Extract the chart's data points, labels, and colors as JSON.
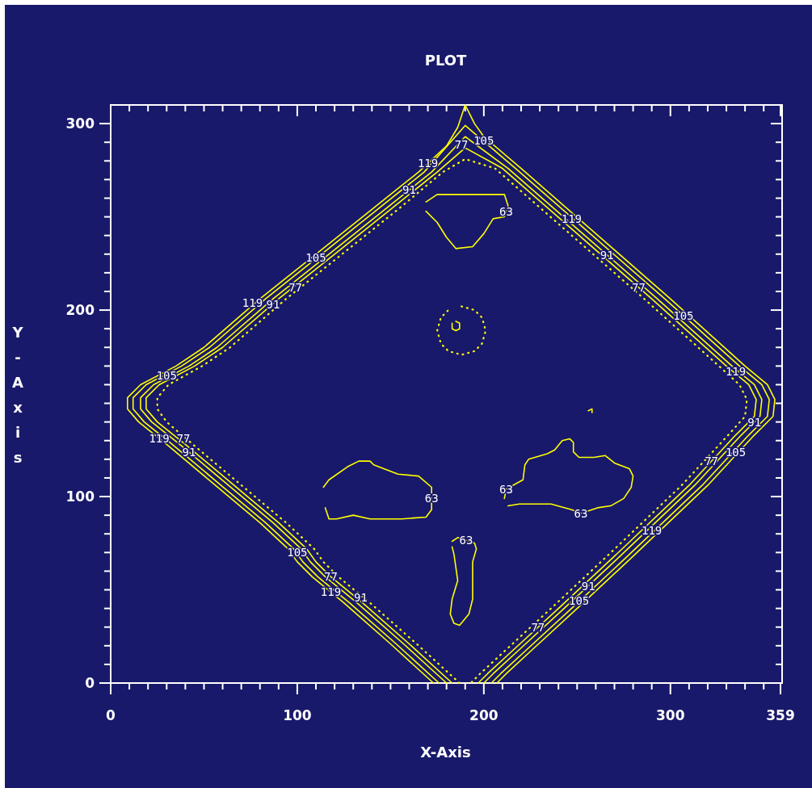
{
  "chart_data": {
    "type": "line",
    "title": "PLOT",
    "xlabel": "X-Axis",
    "ylabel": "Y-Axis",
    "xlim": [
      0,
      359
    ],
    "ylim": [
      0,
      310
    ],
    "xticks": [
      0,
      {
        "value": 10,
        "label": null
      },
      {
        "value": 20,
        "label": null
      },
      {
        "value": 30,
        "label": null
      },
      {
        "value": 40,
        "label": null
      },
      {
        "value": 50,
        "label": null
      },
      {
        "value": 60,
        "label": null
      },
      {
        "value": 70,
        "label": null
      },
      {
        "value": 80,
        "label": null
      },
      {
        "value": 90,
        "label": null
      },
      100,
      {
        "value": 110,
        "label": null
      },
      {
        "value": 120,
        "label": null
      },
      {
        "value": 130,
        "label": null
      },
      {
        "value": 140,
        "label": null
      },
      {
        "value": 150,
        "label": null
      },
      {
        "value": 160,
        "label": null
      },
      {
        "value": 170,
        "label": null
      },
      {
        "value": 180,
        "label": null
      },
      {
        "value": 190,
        "label": null
      },
      200,
      {
        "value": 210,
        "label": null
      },
      {
        "value": 220,
        "label": null
      },
      {
        "value": 230,
        "label": null
      },
      {
        "value": 240,
        "label": null
      },
      {
        "value": 250,
        "label": null
      },
      {
        "value": 260,
        "label": null
      },
      {
        "value": 270,
        "label": null
      },
      {
        "value": 280,
        "label": null
      },
      {
        "value": 290,
        "label": null
      },
      300,
      {
        "value": 310,
        "label": null
      },
      {
        "value": 320,
        "label": null
      },
      {
        "value": 330,
        "label": null
      },
      {
        "value": 340,
        "label": null
      },
      {
        "value": 350,
        "label": null
      },
      359
    ],
    "yticks": [
      0,
      {
        "value": 10,
        "label": null
      },
      {
        "value": 20,
        "label": null
      },
      {
        "value": 30,
        "label": null
      },
      {
        "value": 40,
        "label": null
      },
      {
        "value": 50,
        "label": null
      },
      {
        "value": 60,
        "label": null
      },
      {
        "value": 70,
        "label": null
      },
      {
        "value": 80,
        "label": null
      },
      {
        "value": 90,
        "label": null
      },
      100,
      {
        "value": 110,
        "label": null
      },
      {
        "value": 120,
        "label": null
      },
      {
        "value": 130,
        "label": null
      },
      {
        "value": 140,
        "label": null
      },
      {
        "value": 150,
        "label": null
      },
      {
        "value": 160,
        "label": null
      },
      {
        "value": 170,
        "label": null
      },
      {
        "value": 180,
        "label": null
      },
      {
        "value": 190,
        "label": null
      },
      200,
      {
        "value": 210,
        "label": null
      },
      {
        "value": 220,
        "label": null
      },
      {
        "value": 230,
        "label": null
      },
      {
        "value": 240,
        "label": null
      },
      {
        "value": 250,
        "label": null
      },
      {
        "value": 260,
        "label": null
      },
      {
        "value": 270,
        "label": null
      },
      {
        "value": 280,
        "label": null
      },
      {
        "value": 290,
        "label": null
      },
      300
    ],
    "series": [
      {
        "color": "#ffff00",
        "x": [
          173,
          150,
          125,
          108,
          100,
          95,
          80,
          55,
          30,
          15,
          9,
          9,
          16,
          35,
          50,
          80,
          110,
          140,
          165,
          180,
          186,
          190,
          195,
          200,
          220,
          260,
          300,
          340,
          352,
          356,
          355,
          345,
          320,
          280,
          250,
          225,
          212,
          207
        ],
        "values": [
          0,
          21,
          43,
          57,
          65,
          72,
          86,
          107,
          128,
          140,
          147,
          153,
          160,
          170,
          180,
          206,
          230,
          254,
          274,
          288,
          298,
          310,
          300,
          293,
          276,
          241,
          206,
          170,
          160,
          152,
          143,
          133,
          106,
          68,
          40,
          17,
          5,
          0
        ]
      },
      {
        "color": "#ffff00",
        "x": [
          176,
          153,
          128,
          111,
          103,
          98,
          83,
          58,
          33,
          18,
          12,
          12,
          19,
          38,
          53,
          83,
          113,
          143,
          168,
          190,
          217,
          257,
          297,
          337,
          349,
          353,
          352,
          342,
          317,
          277,
          247,
          222,
          209,
          204
        ],
        "values": [
          0,
          21,
          43,
          57,
          65,
          72,
          86,
          107,
          128,
          140,
          147,
          153,
          160,
          170,
          180,
          206,
          230,
          254,
          274,
          299,
          276,
          241,
          206,
          170,
          160,
          152,
          143,
          133,
          106,
          68,
          40,
          17,
          5,
          0
        ]
      },
      {
        "color": "#ffff00",
        "x": [
          180,
          157,
          132,
          115,
          107,
          102,
          87,
          62,
          37,
          22,
          16,
          16,
          23,
          42,
          57,
          87,
          117,
          147,
          172,
          190,
          213,
          253,
          293,
          333,
          345,
          349,
          348,
          338,
          313,
          273,
          243,
          218,
          205,
          200
        ],
        "values": [
          0,
          21,
          43,
          57,
          65,
          72,
          86,
          107,
          128,
          140,
          147,
          153,
          160,
          170,
          180,
          206,
          230,
          254,
          274,
          293,
          276,
          241,
          206,
          170,
          160,
          152,
          143,
          133,
          106,
          68,
          40,
          17,
          5,
          0
        ]
      },
      {
        "color": "#ffff00",
        "x": [
          183,
          160,
          135,
          118,
          110,
          105,
          90,
          65,
          40,
          25,
          19,
          19,
          26,
          45,
          60,
          90,
          120,
          150,
          175,
          190,
          210,
          250,
          290,
          330,
          342,
          346,
          345,
          335,
          310,
          270,
          240,
          215,
          202,
          197
        ],
        "values": [
          0,
          21,
          43,
          57,
          65,
          72,
          86,
          107,
          128,
          140,
          147,
          153,
          160,
          170,
          180,
          206,
          230,
          254,
          274,
          287,
          276,
          241,
          206,
          170,
          160,
          152,
          143,
          133,
          106,
          68,
          40,
          17,
          5,
          0
        ]
      },
      {
        "color": "#ffff00",
        "line_style": "dotted",
        "x": [
          187,
          164,
          139,
          122,
          114,
          109,
          94,
          69,
          44,
          30,
          25,
          25,
          31,
          49,
          64,
          94,
          124,
          154,
          178,
          190,
          206,
          246,
          286,
          326,
          337,
          341,
          340,
          331,
          306,
          266,
          236,
          211,
          198,
          193
        ],
        "values": [
          0,
          21,
          43,
          57,
          65,
          72,
          86,
          107,
          128,
          140,
          147,
          153,
          160,
          170,
          180,
          206,
          230,
          254,
          274,
          281,
          276,
          241,
          206,
          170,
          160,
          152,
          143,
          133,
          106,
          68,
          40,
          17,
          5,
          0
        ]
      },
      {
        "color": "#ffff00",
        "x": [
          169,
          175,
          192,
          211,
          213,
          211,
          205,
          200,
          194,
          185,
          180,
          175,
          169
        ],
        "values": [
          258,
          262,
          262,
          262,
          256,
          250,
          249,
          241,
          234,
          233,
          239,
          247,
          253
        ]
      },
      {
        "color": "#ffff00",
        "x": [
          114,
          117,
          127,
          133,
          139,
          141,
          154,
          165,
          172,
          172,
          169,
          156,
          139,
          130,
          121,
          117,
          115
        ],
        "values": [
          105,
          109,
          116,
          119,
          119,
          117,
          112,
          111,
          105,
          93,
          89,
          88,
          88,
          90,
          88,
          88,
          94
        ]
      },
      {
        "color": "#ffff00",
        "x": [
          183,
          186,
          195,
          196,
          194,
          194,
          192,
          187,
          184,
          182,
          183,
          186,
          184,
          183
        ],
        "values": [
          76,
          78,
          75,
          72,
          65,
          45,
          37,
          31,
          32,
          37,
          45,
          55,
          69,
          73
        ]
      },
      {
        "color": "#ffff00",
        "x": [
          211,
          212,
          221,
          222,
          224,
          234,
          238,
          242,
          246,
          248,
          248,
          251,
          259,
          265,
          270,
          278,
          280,
          279,
          275,
          268,
          261,
          252,
          247,
          236,
          219,
          213
        ],
        "values": [
          99,
          104,
          109,
          117,
          120,
          123,
          125,
          130,
          131,
          129,
          124,
          121,
          121,
          122,
          118,
          115,
          111,
          105,
          99,
          95,
          94,
          91,
          93,
          96,
          96,
          95
        ]
      },
      {
        "color": "#ffff00",
        "x": [
          185,
          187,
          187,
          185,
          183,
          183
        ],
        "values": [
          194,
          193,
          190,
          189,
          190,
          193
        ]
      },
      {
        "color": "#ffff00",
        "x": [
          256,
          258,
          258
        ],
        "values": [
          146,
          147,
          145
        ]
      },
      {
        "color": "#ffff00",
        "line_style": "dotted",
        "x": [
          188,
          195,
          199,
          201,
          199,
          195,
          188,
          181,
          177,
          175,
          177,
          181
        ],
        "values": [
          202,
          200,
          196,
          189,
          182,
          178,
          176,
          178,
          182,
          189,
          196,
          200
        ]
      }
    ],
    "annotations": [
      {
        "text": "119",
        "x": 170,
        "y": 279
      },
      {
        "text": "91",
        "x": 160,
        "y": 264.4
      },
      {
        "text": "77",
        "x": 188,
        "y": 289
      },
      {
        "text": "105",
        "x": 200,
        "y": 291
      },
      {
        "text": "63",
        "x": 212,
        "y": 253
      },
      {
        "text": "119",
        "x": 247,
        "y": 249
      },
      {
        "text": "91",
        "x": 266,
        "y": 229.6
      },
      {
        "text": "77",
        "x": 283,
        "y": 212
      },
      {
        "text": "105",
        "x": 307,
        "y": 197
      },
      {
        "text": "119",
        "x": 335,
        "y": 167
      },
      {
        "text": "91",
        "x": 345,
        "y": 140
      },
      {
        "text": "77",
        "x": 322,
        "y": 119
      },
      {
        "text": "105",
        "x": 335,
        "y": 124
      },
      {
        "text": "119",
        "x": 290,
        "y": 82
      },
      {
        "text": "91",
        "x": 256,
        "y": 52
      },
      {
        "text": "77",
        "x": 229,
        "y": 30
      },
      {
        "text": "105",
        "x": 251,
        "y": 44
      },
      {
        "text": "63",
        "x": 212,
        "y": 104
      },
      {
        "text": "63",
        "x": 252,
        "y": 91
      },
      {
        "text": "63",
        "x": 190.5,
        "y": 76.5
      },
      {
        "text": "63",
        "x": 172,
        "y": 99
      },
      {
        "text": "105",
        "x": 100,
        "y": 70
      },
      {
        "text": "77",
        "x": 118,
        "y": 57
      },
      {
        "text": "119",
        "x": 118,
        "y": 49
      },
      {
        "text": "91",
        "x": 134,
        "y": 46
      },
      {
        "text": "77",
        "x": 39,
        "y": 131
      },
      {
        "text": "119",
        "x": 26,
        "y": 131
      },
      {
        "text": "91",
        "x": 42,
        "y": 124
      },
      {
        "text": "105",
        "x": 30,
        "y": 165
      },
      {
        "text": "105",
        "x": 110,
        "y": 228
      },
      {
        "text": "77",
        "x": 99,
        "y": 212
      },
      {
        "text": "119",
        "x": 76,
        "y": 204
      },
      {
        "text": "91",
        "x": 87,
        "y": 203
      }
    ]
  }
}
